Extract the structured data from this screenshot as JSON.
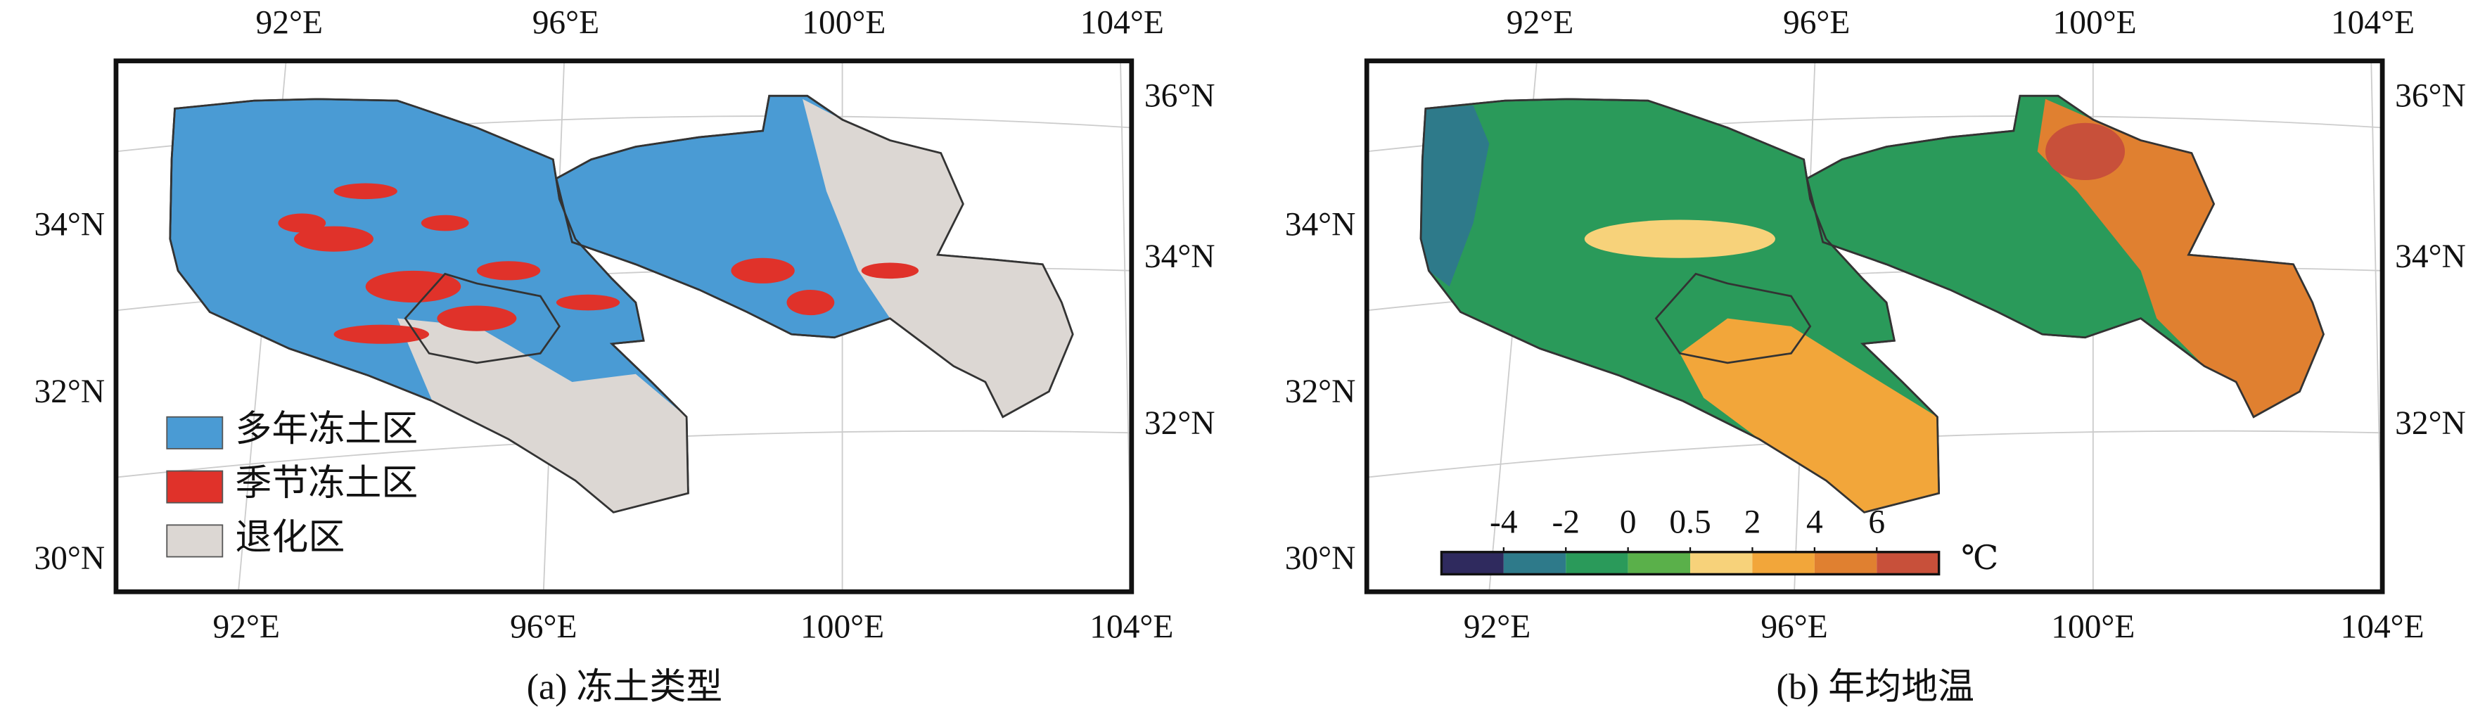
{
  "panels": [
    {
      "caption": "(a) 冻土类型",
      "top_labels": [
        "92°E",
        "96°E",
        "100°E",
        "104°E"
      ],
      "bottom_labels": [
        "92°E",
        "96°E",
        "100°E",
        "104°E"
      ],
      "left_labels": [
        "34°N",
        "32°N",
        "30°N"
      ],
      "right_labels": [
        "36°N",
        "34°N",
        "32°N"
      ],
      "legend": [
        {
          "label": "多年冻土区",
          "color": "#4a9bd4"
        },
        {
          "label": "季节冻土区",
          "color": "#e0322a"
        },
        {
          "label": "退化区",
          "color": "#dcd7d3"
        }
      ]
    },
    {
      "caption": "(b) 年均地温",
      "top_labels": [
        "92°E",
        "96°E",
        "100°E",
        "104°E"
      ],
      "bottom_labels": [
        "92°E",
        "96°E",
        "100°E",
        "104°E"
      ],
      "left_labels": [
        "34°N",
        "32°N",
        "30°N"
      ],
      "right_labels": [
        "36°N",
        "34°N",
        "32°N"
      ],
      "colorbar": {
        "ticks": [
          -4,
          -2,
          0,
          0.5,
          2,
          4,
          6
        ],
        "colors": [
          "#2f2a5e",
          "#2e7a8a",
          "#2a9a5a",
          "#5ab04a",
          "#f7d27a",
          "#f2a63a",
          "#e08030",
          "#c8503a"
        ],
        "unit": "℃"
      }
    }
  ]
}
